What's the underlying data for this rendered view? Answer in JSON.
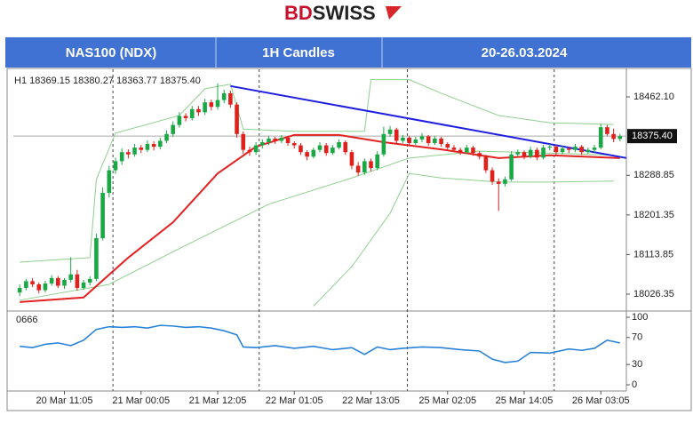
{
  "header": {
    "logo_a": "BD",
    "logo_b": "SWISS",
    "cells": [
      "NAS100 (NDX)",
      "1H Candles",
      "20-26.03.2024"
    ]
  },
  "chart_data": [
    {
      "type": "candlestick",
      "ohlc_label": "H1 18369.15 18380.27 18363.77 18375.40",
      "up_color": "#1aa845",
      "down_color": "#e0201b",
      "candles": [
        [
          18030,
          18048,
          18022,
          18040
        ],
        [
          18040,
          18060,
          18035,
          18055
        ],
        [
          18055,
          18062,
          18042,
          18048
        ],
        [
          18048,
          18052,
          18028,
          18035
        ],
        [
          18035,
          18056,
          18030,
          18050
        ],
        [
          18050,
          18068,
          18045,
          18062
        ],
        [
          18062,
          18066,
          18040,
          18045
        ],
        [
          18045,
          18062,
          18038,
          18058
        ],
        [
          18058,
          18108,
          18052,
          18070
        ],
        [
          18070,
          18080,
          18034,
          18040
        ],
        [
          18040,
          18058,
          18036,
          18052
        ],
        [
          18052,
          18066,
          18046,
          18060
        ],
        [
          18060,
          18160,
          18055,
          18150
        ],
        [
          18150,
          18262,
          18145,
          18250
        ],
        [
          18250,
          18310,
          18240,
          18300
        ],
        [
          18300,
          18328,
          18292,
          18320
        ],
        [
          18320,
          18348,
          18312,
          18340
        ],
        [
          18340,
          18346,
          18326,
          18335
        ],
        [
          18335,
          18358,
          18330,
          18350
        ],
        [
          18350,
          18356,
          18338,
          18345
        ],
        [
          18345,
          18366,
          18340,
          18358
        ],
        [
          18358,
          18364,
          18344,
          18352
        ],
        [
          18352,
          18372,
          18346,
          18365
        ],
        [
          18365,
          18388,
          18360,
          18380
        ],
        [
          18380,
          18408,
          18374,
          18400
        ],
        [
          18400,
          18428,
          18394,
          18420
        ],
        [
          18420,
          18426,
          18408,
          18415
        ],
        [
          18415,
          18442,
          18410,
          18435
        ],
        [
          18435,
          18442,
          18420,
          18428
        ],
        [
          18428,
          18458,
          18422,
          18450
        ],
        [
          18450,
          18456,
          18432,
          18440
        ],
        [
          18440,
          18492,
          18434,
          18455
        ],
        [
          18455,
          18478,
          18448,
          18470
        ],
        [
          18470,
          18476,
          18438,
          18445
        ],
        [
          18445,
          18450,
          18372,
          18380
        ],
        [
          18380,
          18386,
          18336,
          18345
        ],
        [
          18345,
          18352,
          18332,
          18340
        ],
        [
          18340,
          18362,
          18334,
          18355
        ],
        [
          18355,
          18368,
          18348,
          18362
        ],
        [
          18362,
          18376,
          18356,
          18370
        ],
        [
          18370,
          18374,
          18358,
          18365
        ],
        [
          18365,
          18378,
          18360,
          18372
        ],
        [
          18372,
          18376,
          18354,
          18360
        ],
        [
          18360,
          18364,
          18348,
          18355
        ],
        [
          18355,
          18360,
          18334,
          18340
        ],
        [
          18340,
          18344,
          18322,
          18330
        ],
        [
          18330,
          18350,
          18326,
          18345
        ],
        [
          18345,
          18362,
          18340,
          18355
        ],
        [
          18355,
          18360,
          18332,
          18338
        ],
        [
          18338,
          18356,
          18334,
          18350
        ],
        [
          18350,
          18368,
          18346,
          18362
        ],
        [
          18362,
          18366,
          18334,
          18340
        ],
        [
          18340,
          18345,
          18302,
          18310
        ],
        [
          18310,
          18318,
          18288,
          18295
        ],
        [
          18295,
          18326,
          18290,
          18320
        ],
        [
          18320,
          18326,
          18298,
          18305
        ],
        [
          18305,
          18342,
          18300,
          18335
        ],
        [
          18335,
          18396,
          18330,
          18380
        ],
        [
          18380,
          18398,
          18374,
          18390
        ],
        [
          18390,
          18394,
          18358,
          18365
        ],
        [
          18365,
          18378,
          18360,
          18372
        ],
        [
          18372,
          18376,
          18354,
          18360
        ],
        [
          18360,
          18374,
          18356,
          18368
        ],
        [
          18368,
          18382,
          18362,
          18375
        ],
        [
          18375,
          18378,
          18354,
          18360
        ],
        [
          18360,
          18376,
          18356,
          18370
        ],
        [
          18370,
          18374,
          18352,
          18358
        ],
        [
          18358,
          18362,
          18344,
          18350
        ],
        [
          18350,
          18356,
          18340,
          18345
        ],
        [
          18345,
          18350,
          18334,
          18340
        ],
        [
          18340,
          18356,
          18336,
          18350
        ],
        [
          18350,
          18354,
          18332,
          18338
        ],
        [
          18338,
          18342,
          18324,
          18330
        ],
        [
          18330,
          18334,
          18294,
          18300
        ],
        [
          18300,
          18306,
          18268,
          18275
        ],
        [
          18275,
          18282,
          18210,
          18270
        ],
        [
          18270,
          18286,
          18264,
          18280
        ],
        [
          18280,
          18342,
          18276,
          18335
        ],
        [
          18335,
          18346,
          18330,
          18340
        ],
        [
          18340,
          18344,
          18324,
          18330
        ],
        [
          18330,
          18352,
          18326,
          18345
        ],
        [
          18345,
          18350,
          18322,
          18328
        ],
        [
          18328,
          18356,
          18324,
          18350
        ],
        [
          18350,
          18358,
          18344,
          18352
        ],
        [
          18352,
          18356,
          18334,
          18340
        ],
        [
          18340,
          18354,
          18336,
          18348
        ],
        [
          18348,
          18352,
          18338,
          18345
        ],
        [
          18345,
          18358,
          18340,
          18352
        ],
        [
          18352,
          18356,
          18334,
          18340
        ],
        [
          18340,
          18350,
          18336,
          18345
        ],
        [
          18345,
          18356,
          18340,
          18350
        ],
        [
          18350,
          18402,
          18346,
          18395
        ],
        [
          18395,
          18400,
          18376,
          18380
        ],
        [
          18380,
          18392,
          18362,
          18369.15
        ],
        [
          18369.15,
          18380.27,
          18363.77,
          18375.4
        ]
      ],
      "series": [
        {
          "color": "#8fcf8f",
          "x": [
            0,
            11,
            12,
            15,
            25,
            29,
            33,
            35,
            43,
            54,
            55,
            61,
            66,
            75,
            83,
            93
          ],
          "values": [
            18097,
            18107,
            18280,
            18382,
            18421,
            18480,
            18490,
            18391,
            18386,
            18386,
            18500,
            18500,
            18470,
            18421,
            18405,
            18401
          ]
        },
        {
          "color": "#8fcf8f",
          "x": [
            0,
            14,
            25,
            39,
            52,
            61,
            72,
            83,
            93
          ],
          "values": [
            18013,
            18048,
            18127,
            18225,
            18283,
            18327,
            18342,
            18338,
            18333
          ]
        },
        {
          "color": "#8fcf8f",
          "x": [
            46,
            52,
            58,
            61,
            66,
            75,
            83,
            93
          ],
          "values": [
            18000,
            18087,
            18205,
            18293,
            18283,
            18274,
            18274,
            18276
          ]
        },
        {
          "color": "#e32222",
          "x": [
            0,
            10,
            17,
            24,
            31,
            37,
            43,
            50,
            57,
            66,
            75,
            83,
            94
          ],
          "values": [
            18009,
            18019,
            18107,
            18185,
            18293,
            18352,
            18378,
            18378,
            18362,
            18346,
            18327,
            18333,
            18327
          ]
        },
        {
          "color": "#1e1ee0",
          "x": [
            33,
            95
          ],
          "values": [
            18486,
            18327
          ]
        }
      ],
      "last_price": {
        "value": 18375.4,
        "label": "18375.40"
      },
      "xlim": [
        -1,
        95
      ],
      "ylim": [
        17993,
        18519
      ],
      "yticks": [
        {
          "value": 18462.1,
          "label": "18462.10"
        },
        18288.85,
        18201.35,
        18113.85,
        18026.35
      ],
      "xticks": [
        {
          "value": 7,
          "label": "20 Mar 11:05"
        },
        {
          "value": 19,
          "label": "21 Mar 00:05"
        },
        {
          "value": 31,
          "label": "21 Mar 12:05"
        },
        {
          "value": 43,
          "label": "22 Mar 01:05"
        },
        {
          "value": 55,
          "label": "22 Mar 13:05"
        },
        {
          "value": 67,
          "label": "25 Mar 02:05"
        },
        {
          "value": 79,
          "label": "25 Mar 14:05"
        },
        {
          "value": 91,
          "label": "26 Mar 03:05"
        }
      ],
      "day_separators": [
        14.6,
        37.5,
        60.7,
        83.7
      ]
    },
    {
      "type": "line",
      "title": "0666",
      "color": "#2a82d8",
      "x": [
        0,
        2,
        4,
        6,
        8,
        10,
        12,
        14,
        16,
        18,
        20,
        22,
        24,
        26,
        28,
        30,
        32,
        34,
        35,
        37,
        40,
        43,
        46,
        49,
        52,
        54,
        56,
        58,
        60,
        63,
        66,
        69,
        72,
        74,
        76,
        78,
        80,
        83,
        86,
        88,
        90,
        92,
        94
      ],
      "values": [
        57,
        55,
        60,
        62,
        58,
        66,
        82,
        86,
        85,
        86,
        84,
        88,
        87,
        85,
        86,
        84,
        80,
        74,
        56,
        55,
        58,
        54,
        57,
        52,
        55,
        45,
        56,
        52,
        54,
        56,
        55,
        52,
        50,
        38,
        33,
        35,
        48,
        47,
        53,
        51,
        54,
        66,
        62
      ],
      "xlim": [
        -1,
        95
      ],
      "ylim": [
        0,
        100
      ],
      "yticks": [
        100,
        70,
        30,
        0
      ]
    }
  ]
}
